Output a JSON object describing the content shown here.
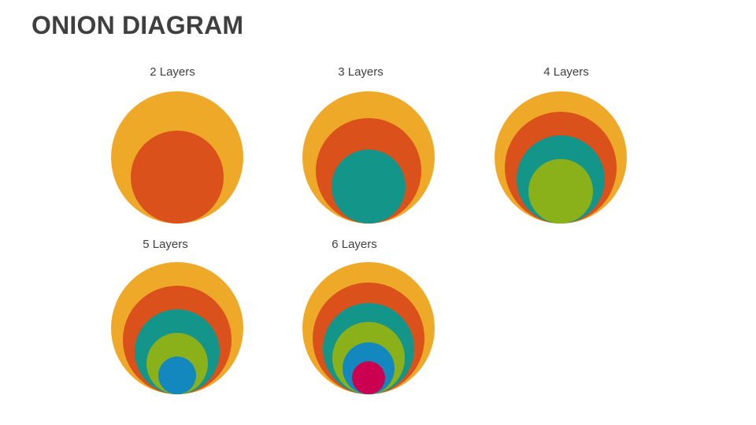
{
  "title": "ONION DIAGRAM",
  "colors": {
    "layer1": "#EEA928",
    "layer2": "#DB511B",
    "layer3": "#13958A",
    "layer4": "#8BB11A",
    "layer5": "#1388BE",
    "layer6": "#CC0050"
  },
  "diagrams": [
    {
      "label": "2 Layers",
      "layers": 2
    },
    {
      "label": "3 Layers",
      "layers": 3
    },
    {
      "label": "4 Layers",
      "layers": 4
    },
    {
      "label": "5 Layers",
      "layers": 5
    },
    {
      "label": "6 Layers",
      "layers": 6
    }
  ]
}
